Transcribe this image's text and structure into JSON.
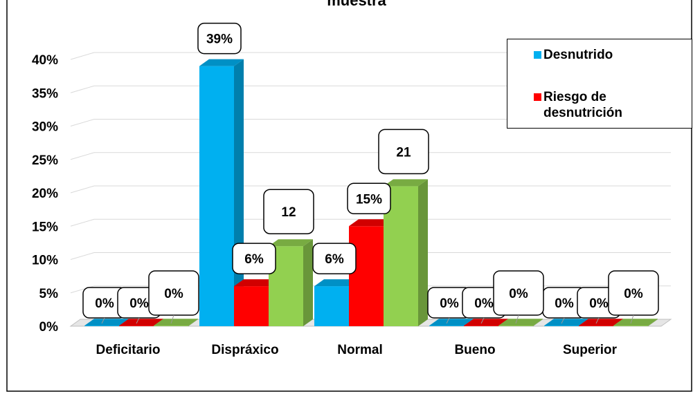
{
  "chart_data": {
    "type": "bar",
    "title": "muestra",
    "categories": [
      "Deficitario",
      "Dispráxico",
      "Normal",
      "Bueno",
      "Superior"
    ],
    "y_ticks": [
      "0%",
      "5%",
      "10%",
      "15%",
      "20%",
      "25%",
      "30%",
      "35%",
      "40%"
    ],
    "ylim": [
      0,
      40
    ],
    "grid": true,
    "legend_position": "top-right",
    "series": [
      {
        "name": "Desnutrido",
        "color": "#00B0F0",
        "values": [
          0,
          39,
          6,
          0,
          0
        ],
        "labels": [
          "0%",
          "39%",
          "6%",
          "0%",
          "0%"
        ]
      },
      {
        "name": "Riesgo de desnutrición",
        "color": "#FF0000",
        "values": [
          0,
          6,
          15,
          0,
          0
        ],
        "labels": [
          "0%",
          "6%",
          "15%",
          "0%",
          "0%"
        ]
      },
      {
        "color": "#92D050",
        "values": [
          0,
          12,
          21,
          0,
          0
        ],
        "labels": [
          "0%",
          "12",
          "21",
          "0%",
          "0%"
        ]
      }
    ]
  }
}
